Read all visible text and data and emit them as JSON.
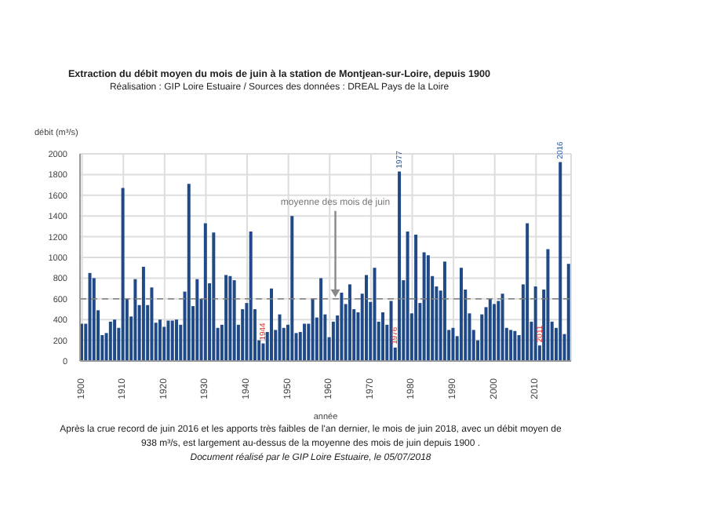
{
  "chart_data": {
    "type": "bar",
    "title": "Extraction du débit moyen du mois de juin à la station de Montjean-sur-Loire, depuis 1900",
    "subtitle": "Réalisation : GIP Loire Estuaire / Sources des données : DREAL Pays de la Loire",
    "xlabel": "année",
    "ylabel": "débit (m³/s)",
    "x": [
      1900,
      1901,
      1902,
      1903,
      1904,
      1905,
      1906,
      1907,
      1908,
      1909,
      1910,
      1911,
      1912,
      1913,
      1914,
      1915,
      1916,
      1917,
      1918,
      1919,
      1920,
      1921,
      1922,
      1923,
      1924,
      1925,
      1926,
      1927,
      1928,
      1929,
      1930,
      1931,
      1932,
      1933,
      1934,
      1935,
      1936,
      1937,
      1938,
      1939,
      1940,
      1941,
      1942,
      1943,
      1944,
      1945,
      1946,
      1947,
      1948,
      1949,
      1950,
      1951,
      1952,
      1953,
      1954,
      1955,
      1956,
      1957,
      1958,
      1959,
      1960,
      1961,
      1962,
      1963,
      1964,
      1965,
      1966,
      1967,
      1968,
      1969,
      1970,
      1971,
      1972,
      1973,
      1974,
      1975,
      1976,
      1977,
      1978,
      1979,
      1980,
      1981,
      1982,
      1983,
      1984,
      1985,
      1986,
      1987,
      1988,
      1989,
      1990,
      1991,
      1992,
      1993,
      1994,
      1995,
      1996,
      1997,
      1998,
      1999,
      2000,
      2001,
      2002,
      2003,
      2004,
      2005,
      2006,
      2007,
      2008,
      2009,
      2010,
      2011,
      2012,
      2013,
      2014,
      2015,
      2016,
      2017,
      2018
    ],
    "values": [
      360,
      360,
      850,
      800,
      490,
      250,
      270,
      380,
      400,
      320,
      1670,
      600,
      430,
      790,
      540,
      910,
      540,
      710,
      370,
      400,
      330,
      390,
      390,
      400,
      350,
      670,
      1710,
      530,
      790,
      600,
      1330,
      750,
      1240,
      320,
      350,
      830,
      820,
      780,
      350,
      500,
      560,
      1250,
      500,
      200,
      170,
      280,
      700,
      300,
      450,
      320,
      350,
      1400,
      270,
      280,
      360,
      360,
      600,
      420,
      800,
      450,
      230,
      380,
      440,
      660,
      550,
      740,
      500,
      470,
      650,
      830,
      570,
      900,
      380,
      470,
      350,
      580,
      130,
      1830,
      780,
      1250,
      460,
      1220,
      560,
      1050,
      1020,
      820,
      720,
      680,
      960,
      300,
      320,
      240,
      900,
      690,
      460,
      300,
      200,
      450,
      520,
      600,
      550,
      580,
      650,
      320,
      300,
      290,
      250,
      740,
      1330,
      380,
      720,
      150,
      690,
      1080,
      380,
      320,
      1920,
      260,
      938
    ],
    "color": "#1f4a87",
    "xlim": [
      1899.5,
      2018.5
    ],
    "xticks": [
      1900,
      1910,
      1920,
      1930,
      1940,
      1950,
      1960,
      1970,
      1980,
      1990,
      2000,
      2010
    ],
    "ylim": [
      0,
      2000
    ],
    "yticks": [
      0,
      200,
      400,
      600,
      800,
      1000,
      1200,
      1400,
      1600,
      1800,
      2000
    ],
    "grid": true,
    "ref_lines": [
      {
        "axis": "y",
        "value": 600,
        "label": "moyenne des mois de juin",
        "color": "#808080",
        "line_style": "dashed"
      }
    ],
    "annotations": [
      {
        "text": "1944",
        "x": 1944,
        "y": 170
      },
      {
        "text": "1976",
        "x": 1976,
        "y": 130
      },
      {
        "text": "1977",
        "x": 1977,
        "y": 1830
      },
      {
        "text": "2011",
        "x": 2011,
        "y": 150
      },
      {
        "text": "2016",
        "x": 2016,
        "y": 1920
      },
      "Après la crue record de juin 2016 et les apports très faibles de l'an dernier, le mois de juin 2018, avec un débit moyen de 938 m³/s, est largement au-dessus de la moyenne des mois de juin depuis 1900 .",
      "Document réalisé par le GIP Loire Estuaire, le 05/07/2018"
    ]
  }
}
